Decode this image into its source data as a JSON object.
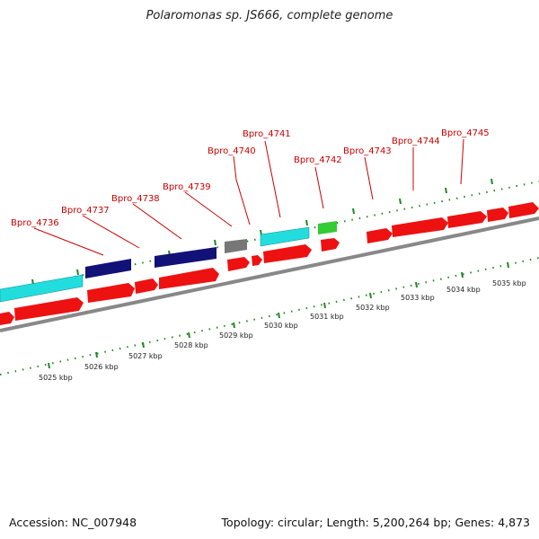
{
  "title": "Polaromonas sp. JS666, complete genome",
  "footer": {
    "accession_label": "Accession:",
    "accession": "NC_007948",
    "topology_label": "Topology:",
    "topology": "circular",
    "length_label": "Length:",
    "length": "5,200,264 bp",
    "genes_label": "Genes:",
    "genes": "4,873"
  },
  "gene_labels": [
    "Bpro_4736",
    "Bpro_4737",
    "Bpro_4738",
    "Bpro_4739",
    "Bpro_4740",
    "Bpro_4741",
    "Bpro_4742",
    "Bpro_4743",
    "Bpro_4744",
    "Bpro_4745"
  ],
  "kbp_labels": [
    "5025 kbp",
    "5026 kbp",
    "5027 kbp",
    "5028 kbp",
    "5029 kbp",
    "5030 kbp",
    "5031 kbp",
    "5032 kbp",
    "5033 kbp",
    "5034 kbp",
    "5035 kbp"
  ],
  "colors": {
    "cds": "#ee1111",
    "cyan": "#22dddd",
    "navy": "#111177",
    "gray": "#777777",
    "green": "#33cc33",
    "backbone": "#888888",
    "ticks": "#228822",
    "label": "#cc0000"
  }
}
